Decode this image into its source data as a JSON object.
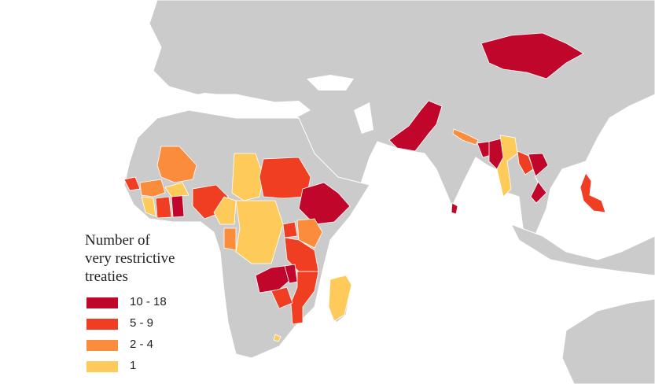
{
  "legend": {
    "title": [
      "Number of",
      "very restrictive",
      "treaties"
    ],
    "items": [
      {
        "label": "10 - 18",
        "color": "#c0062b"
      },
      {
        "label": "5 - 9",
        "color": "#f03e22"
      },
      {
        "label": "2 - 4",
        "color": "#fb8c3c"
      },
      {
        "label": "1",
        "color": "#fecb5b"
      }
    ]
  }
}
